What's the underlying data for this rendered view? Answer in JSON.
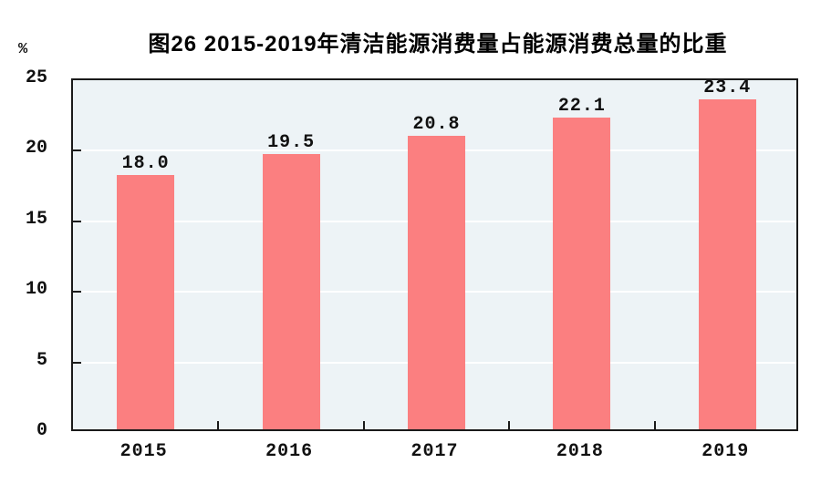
{
  "figure": {
    "title": "图26  2015-2019年清洁能源消费量占能源消费总量的比重",
    "unit_label": "%"
  },
  "chart_data": {
    "type": "bar",
    "title": "图26  2015-2019年清洁能源消费量占能源消费总量的比重",
    "categories": [
      "2015",
      "2016",
      "2017",
      "2018",
      "2019"
    ],
    "values": [
      18.0,
      19.5,
      20.8,
      22.1,
      23.4
    ],
    "value_labels": [
      "18.0",
      "19.5",
      "20.8",
      "22.1",
      "23.4"
    ],
    "xlabel": "",
    "ylabel": "%",
    "ylim": [
      0,
      25
    ],
    "yticks": [
      0,
      5,
      10,
      15,
      20,
      25
    ],
    "grid": true,
    "legend": "none",
    "colors": {
      "bar": "#FB7F80",
      "plot_background": "#EDF3F6",
      "gridline": "#FFFFFF",
      "axis": "#1A1A1A",
      "text": "#111111"
    }
  }
}
